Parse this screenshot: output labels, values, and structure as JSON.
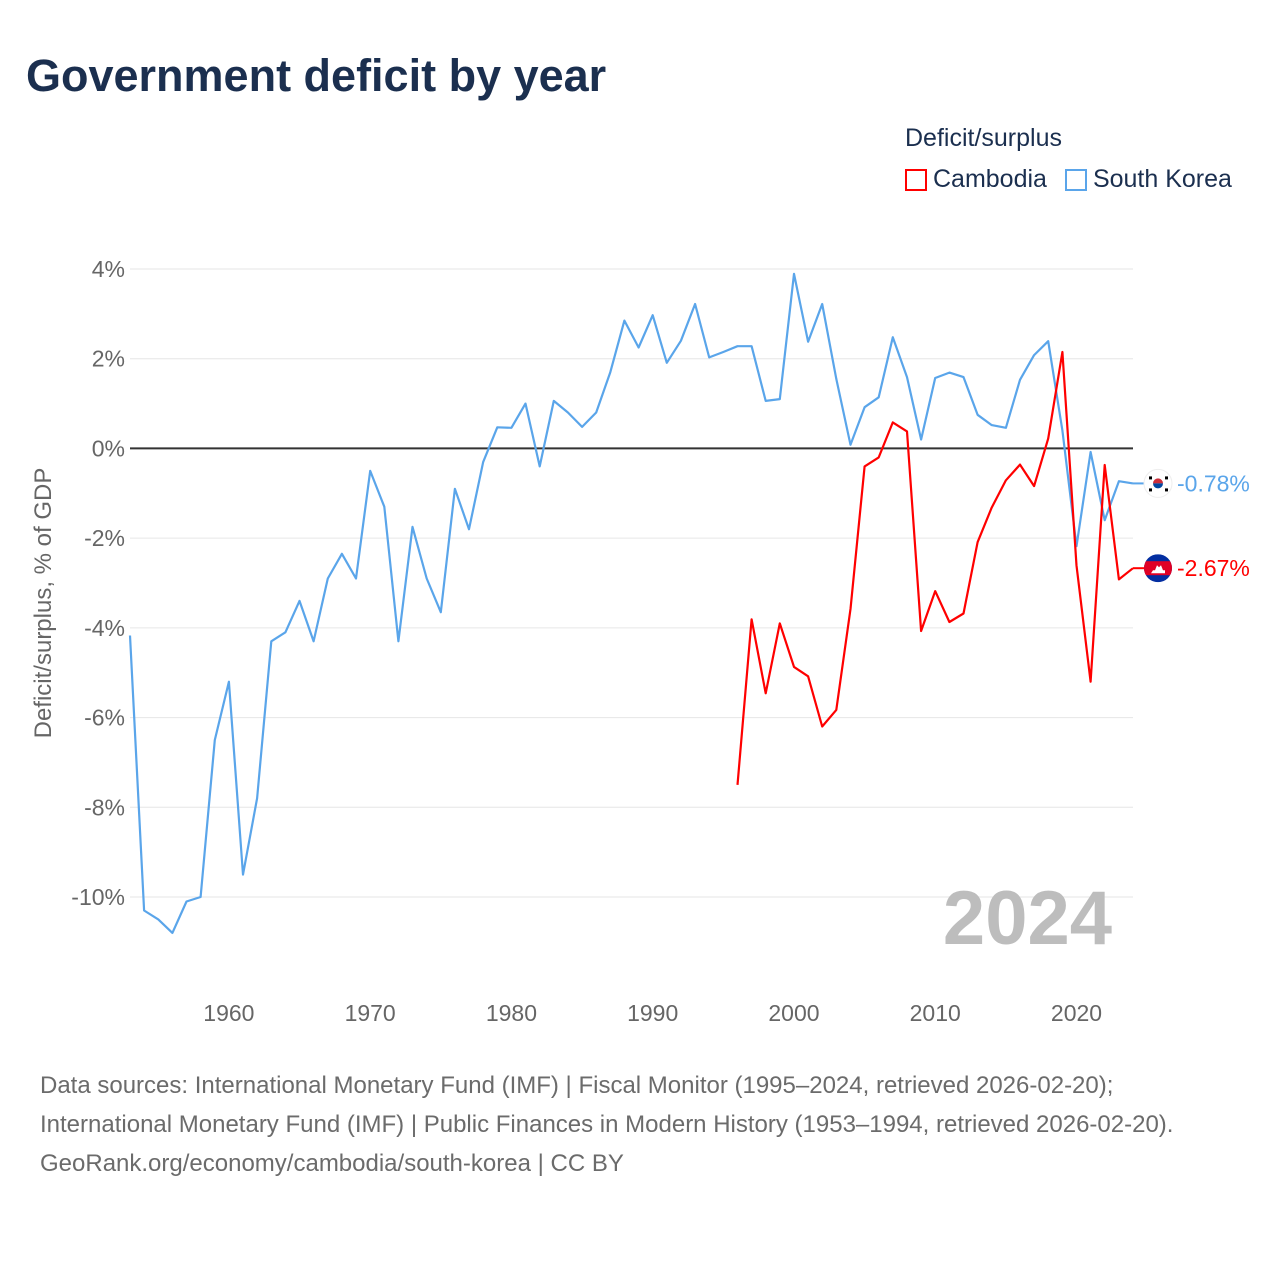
{
  "title": "Government deficit by year",
  "legend": {
    "title": "Deficit/surplus",
    "items": [
      {
        "label": "Cambodia",
        "color": "#ff0000"
      },
      {
        "label": "South Korea",
        "color": "#5aa5ea"
      }
    ]
  },
  "chart_data": {
    "type": "line",
    "title": "Government deficit by year",
    "ylabel": "Deficit/surplus, % of GDP",
    "xlabel": "",
    "ylim": [
      -10,
      4
    ],
    "xlim": [
      1953,
      2024
    ],
    "yticks": [
      4,
      2,
      0,
      -2,
      -4,
      -6,
      -8,
      -10
    ],
    "ytick_labels": [
      "4%",
      "2%",
      "0%",
      "-2%",
      "-4%",
      "-6%",
      "-8%",
      "-10%"
    ],
    "xticks": [
      1960,
      1970,
      1980,
      1990,
      2000,
      2010,
      2020
    ],
    "xtick_labels": [
      "1960",
      "1970",
      "1980",
      "1990",
      "2000",
      "2010",
      "2020"
    ],
    "grid": true,
    "legend_position": "top-right",
    "year_watermark": "2024",
    "series": [
      {
        "name": "South Korea",
        "color": "#5aa5ea",
        "start_year": 1953,
        "end_label": "-0.78%",
        "values": [
          -4.17,
          -10.3,
          -10.5,
          -10.8,
          -10.1,
          -10.0,
          -6.5,
          -5.2,
          -9.5,
          -7.8,
          -4.3,
          -4.1,
          -3.4,
          -4.3,
          -2.9,
          -2.35,
          -2.9,
          -0.5,
          -1.3,
          -4.3,
          -1.75,
          -2.9,
          -3.65,
          -0.9,
          -1.8,
          -0.3,
          0.47,
          0.46,
          1.0,
          -0.4,
          1.06,
          0.8,
          0.48,
          0.8,
          1.7,
          2.85,
          2.25,
          2.97,
          1.91,
          2.4,
          3.22,
          2.03,
          2.15,
          2.28,
          2.28,
          1.06,
          1.1,
          3.89,
          2.38,
          3.22,
          1.55,
          0.08,
          0.92,
          1.14,
          2.48,
          1.59,
          0.2,
          1.57,
          1.69,
          1.59,
          0.75,
          0.52,
          0.46,
          1.53,
          2.08,
          2.39,
          0.4,
          -2.18,
          -0.08,
          -1.6,
          -0.73,
          -0.78
        ]
      },
      {
        "name": "Cambodia",
        "color": "#ff0000",
        "start_year": 1996,
        "end_label": "-2.67%",
        "values": [
          -7.5,
          -3.81,
          -5.46,
          -3.9,
          -4.87,
          -5.08,
          -6.2,
          -5.83,
          -3.58,
          -0.4,
          -0.2,
          0.58,
          0.38,
          -4.07,
          -3.18,
          -3.87,
          -3.68,
          -2.09,
          -1.32,
          -0.71,
          -0.36,
          -0.84,
          0.22,
          2.15,
          -2.61,
          -5.2,
          -0.37,
          -2.92,
          -2.67
        ]
      }
    ]
  },
  "footer": {
    "sources": "Data sources: International Monetary Fund (IMF) | Fiscal Monitor (1995–2024, retrieved 2026-02-20); International Monetary Fund (IMF) | Public Finances in Modern History (1953–1994, retrieved 2026-02-20).",
    "credit": "GeoRank.org/economy/cambodia/south-korea | CC BY"
  }
}
